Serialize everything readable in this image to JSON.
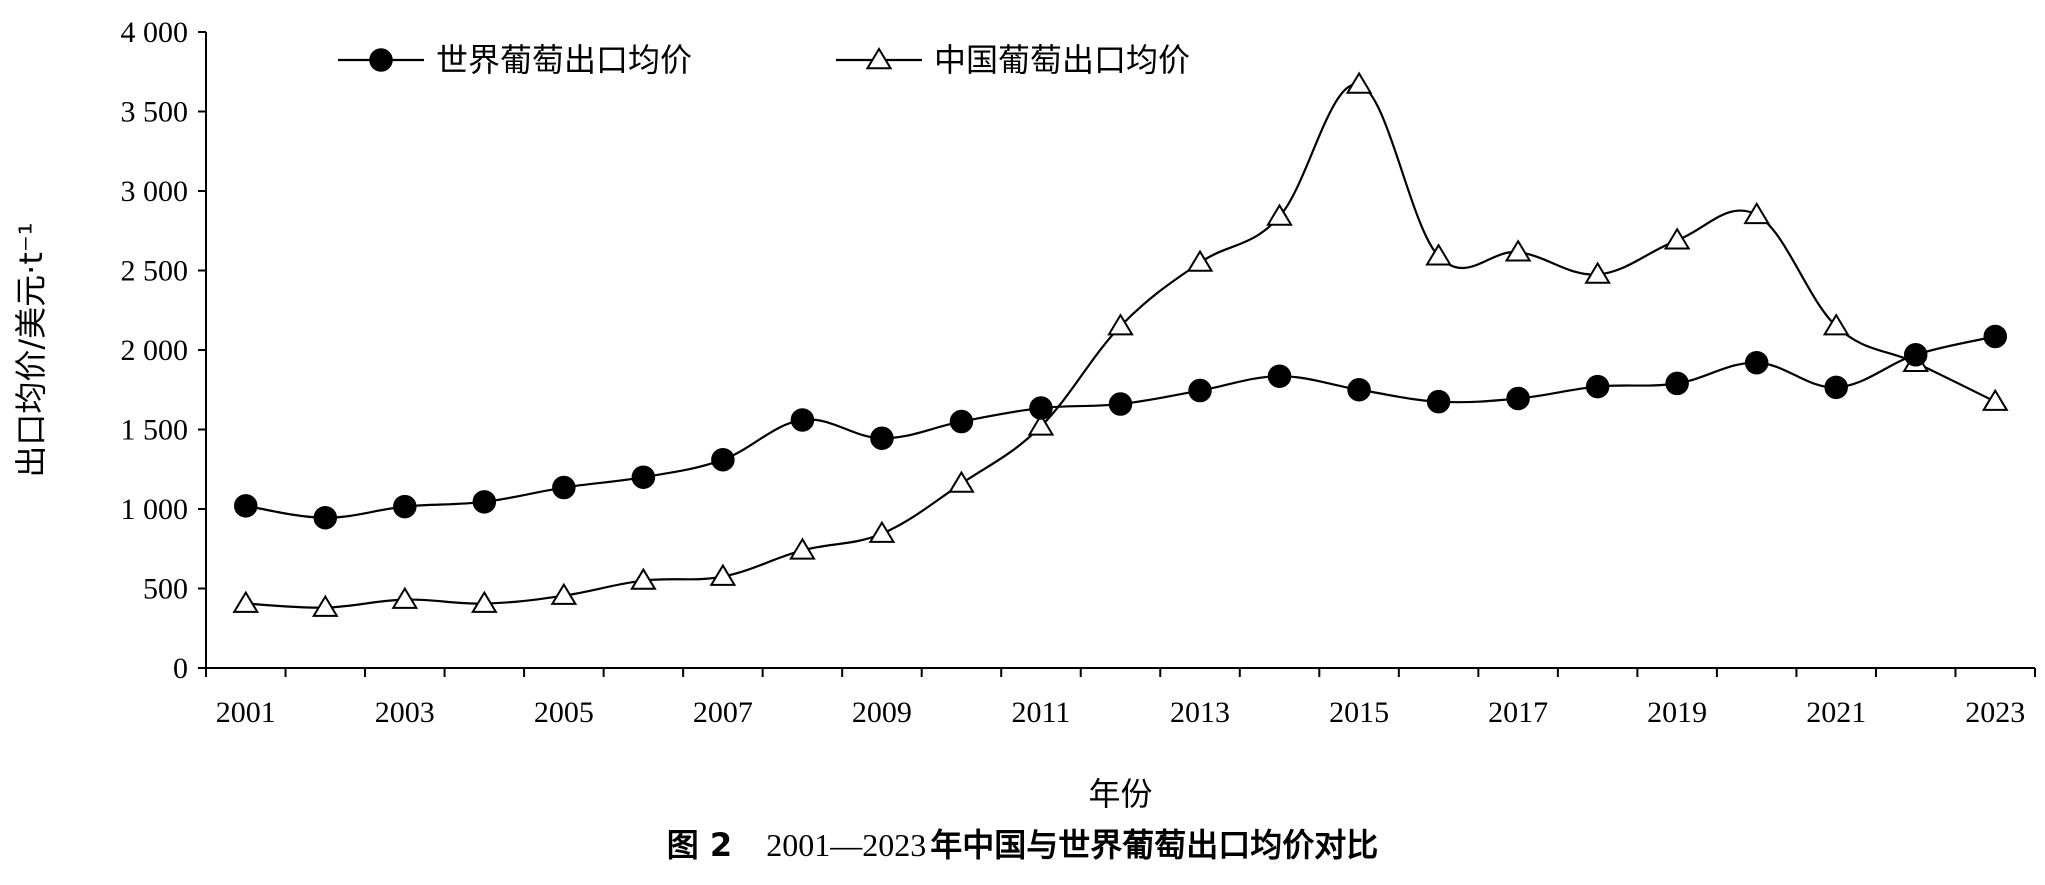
{
  "chart_data": {
    "type": "line",
    "title": "",
    "xlabel": "年份",
    "ylabel": "出口均价/美元·t⁻¹",
    "ylim": [
      0,
      4000
    ],
    "yticks": [
      0,
      500,
      1000,
      1500,
      2000,
      2500,
      3000,
      3500,
      4000
    ],
    "ytick_labels": [
      "0",
      "500",
      "1 000",
      "1 500",
      "2 000",
      "2 500",
      "3 000",
      "3 500",
      "4 000"
    ],
    "x": [
      2001,
      2002,
      2003,
      2004,
      2005,
      2006,
      2007,
      2008,
      2009,
      2010,
      2011,
      2012,
      2013,
      2014,
      2015,
      2016,
      2017,
      2018,
      2019,
      2020,
      2021,
      2022,
      2023
    ],
    "xtick_labels": [
      "2001",
      "2003",
      "2005",
      "2007",
      "2009",
      "2011",
      "2013",
      "2015",
      "2017",
      "2019",
      "2021",
      "2023"
    ],
    "grid": false,
    "legend_position": "top-left",
    "series": [
      {
        "name": "世界葡萄出口均价",
        "marker": "filled-circle",
        "values": [
          1020,
          945,
          1015,
          1045,
          1135,
          1200,
          1310,
          1560,
          1445,
          1550,
          1635,
          1660,
          1745,
          1835,
          1750,
          1675,
          1695,
          1770,
          1790,
          1920,
          1765,
          1970,
          2085
        ]
      },
      {
        "name": "中国葡萄出口均价",
        "marker": "open-triangle",
        "values": [
          405,
          380,
          430,
          405,
          455,
          550,
          575,
          740,
          845,
          1160,
          1520,
          2150,
          2550,
          2840,
          3670,
          2590,
          2615,
          2475,
          2690,
          2850,
          2150,
          1920,
          1675
        ]
      }
    ]
  },
  "caption": {
    "prefix": "图 2",
    "range": "2001—2023",
    "suffix": "年中国与世界葡萄出口均价对比"
  },
  "colors": {
    "line": "#000000",
    "background": "#ffffff"
  }
}
